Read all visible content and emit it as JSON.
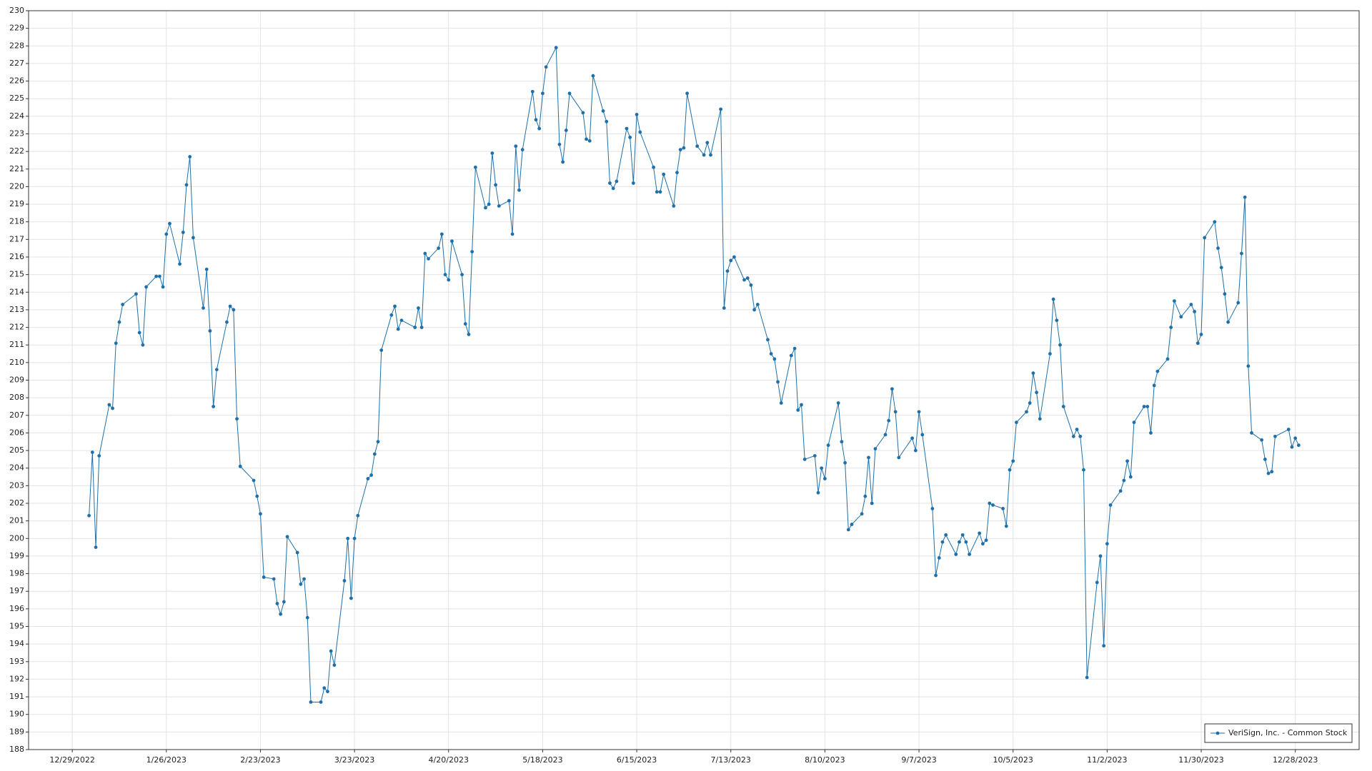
{
  "chart_data": {
    "type": "line",
    "grid": true,
    "legend": "lower right",
    "xlim": [
      "2022-12-16",
      "2024-01-16"
    ],
    "xticks": [
      {
        "value": "2022-12-29",
        "label": "12/29/2022"
      },
      {
        "value": "2023-01-26",
        "label": "1/26/2023"
      },
      {
        "value": "2023-02-23",
        "label": "2/23/2023"
      },
      {
        "value": "2023-03-23",
        "label": "3/23/2023"
      },
      {
        "value": "2023-04-20",
        "label": "4/20/2023"
      },
      {
        "value": "2023-05-18",
        "label": "5/18/2023"
      },
      {
        "value": "2023-06-15",
        "label": "6/15/2023"
      },
      {
        "value": "2023-07-13",
        "label": "7/13/2023"
      },
      {
        "value": "2023-08-10",
        "label": "8/10/2023"
      },
      {
        "value": "2023-09-07",
        "label": "9/7/2023"
      },
      {
        "value": "2023-10-05",
        "label": "10/5/2023"
      },
      {
        "value": "2023-11-02",
        "label": "11/2/2023"
      },
      {
        "value": "2023-11-30",
        "label": "11/30/2023"
      },
      {
        "value": "2023-12-28",
        "label": "12/28/2023"
      }
    ],
    "ylim": [
      188,
      230
    ],
    "yticks": [
      188,
      189,
      190,
      191,
      192,
      193,
      194,
      195,
      196,
      197,
      198,
      199,
      200,
      201,
      202,
      203,
      204,
      205,
      206,
      207,
      208,
      209,
      210,
      211,
      212,
      213,
      214,
      215,
      216,
      217,
      218,
      219,
      220,
      221,
      222,
      223,
      224,
      225,
      226,
      227,
      228,
      229,
      230
    ],
    "x": [
      "2023-01-03",
      "2023-01-04",
      "2023-01-05",
      "2023-01-06",
      "2023-01-09",
      "2023-01-10",
      "2023-01-11",
      "2023-01-12",
      "2023-01-13",
      "2023-01-17",
      "2023-01-18",
      "2023-01-19",
      "2023-01-20",
      "2023-01-23",
      "2023-01-24",
      "2023-01-25",
      "2023-01-26",
      "2023-01-27",
      "2023-01-30",
      "2023-01-31",
      "2023-02-01",
      "2023-02-02",
      "2023-02-03",
      "2023-02-06",
      "2023-02-07",
      "2023-02-08",
      "2023-02-09",
      "2023-02-10",
      "2023-02-13",
      "2023-02-14",
      "2023-02-15",
      "2023-02-16",
      "2023-02-17",
      "2023-02-21",
      "2023-02-22",
      "2023-02-23",
      "2023-02-24",
      "2023-02-27",
      "2023-02-28",
      "2023-03-01",
      "2023-03-02",
      "2023-03-03",
      "2023-03-06",
      "2023-03-07",
      "2023-03-08",
      "2023-03-09",
      "2023-03-10",
      "2023-03-13",
      "2023-03-14",
      "2023-03-15",
      "2023-03-16",
      "2023-03-17",
      "2023-03-20",
      "2023-03-21",
      "2023-03-22",
      "2023-03-23",
      "2023-03-24",
      "2023-03-27",
      "2023-03-28",
      "2023-03-29",
      "2023-03-30",
      "2023-03-31",
      "2023-04-03",
      "2023-04-04",
      "2023-04-05",
      "2023-04-06",
      "2023-04-10",
      "2023-04-11",
      "2023-04-12",
      "2023-04-13",
      "2023-04-14",
      "2023-04-17",
      "2023-04-18",
      "2023-04-19",
      "2023-04-20",
      "2023-04-21",
      "2023-04-24",
      "2023-04-25",
      "2023-04-26",
      "2023-04-27",
      "2023-04-28",
      "2023-05-01",
      "2023-05-02",
      "2023-05-03",
      "2023-05-04",
      "2023-05-05",
      "2023-05-08",
      "2023-05-09",
      "2023-05-10",
      "2023-05-11",
      "2023-05-12",
      "2023-05-15",
      "2023-05-16",
      "2023-05-17",
      "2023-05-18",
      "2023-05-19",
      "2023-05-22",
      "2023-05-23",
      "2023-05-24",
      "2023-05-25",
      "2023-05-26",
      "2023-05-30",
      "2023-05-31",
      "2023-06-01",
      "2023-06-02",
      "2023-06-05",
      "2023-06-06",
      "2023-06-07",
      "2023-06-08",
      "2023-06-09",
      "2023-06-12",
      "2023-06-13",
      "2023-06-14",
      "2023-06-15",
      "2023-06-16",
      "2023-06-20",
      "2023-06-21",
      "2023-06-22",
      "2023-06-23",
      "2023-06-26",
      "2023-06-27",
      "2023-06-28",
      "2023-06-29",
      "2023-06-30",
      "2023-07-03",
      "2023-07-05",
      "2023-07-06",
      "2023-07-07",
      "2023-07-10",
      "2023-07-11",
      "2023-07-12",
      "2023-07-13",
      "2023-07-14",
      "2023-07-17",
      "2023-07-18",
      "2023-07-19",
      "2023-07-20",
      "2023-07-21",
      "2023-07-24",
      "2023-07-25",
      "2023-07-26",
      "2023-07-27",
      "2023-07-28",
      "2023-07-31",
      "2023-08-01",
      "2023-08-02",
      "2023-08-03",
      "2023-08-04",
      "2023-08-07",
      "2023-08-08",
      "2023-08-09",
      "2023-08-10",
      "2023-08-11",
      "2023-08-14",
      "2023-08-15",
      "2023-08-16",
      "2023-08-17",
      "2023-08-18",
      "2023-08-21",
      "2023-08-22",
      "2023-08-23",
      "2023-08-24",
      "2023-08-25",
      "2023-08-28",
      "2023-08-29",
      "2023-08-30",
      "2023-08-31",
      "2023-09-01",
      "2023-09-05",
      "2023-09-06",
      "2023-09-07",
      "2023-09-08",
      "2023-09-11",
      "2023-09-12",
      "2023-09-13",
      "2023-09-14",
      "2023-09-15",
      "2023-09-18",
      "2023-09-19",
      "2023-09-20",
      "2023-09-21",
      "2023-09-22",
      "2023-09-25",
      "2023-09-26",
      "2023-09-27",
      "2023-09-28",
      "2023-09-29",
      "2023-10-02",
      "2023-10-03",
      "2023-10-04",
      "2023-10-05",
      "2023-10-06",
      "2023-10-09",
      "2023-10-10",
      "2023-10-11",
      "2023-10-12",
      "2023-10-13",
      "2023-10-16",
      "2023-10-17",
      "2023-10-18",
      "2023-10-19",
      "2023-10-20",
      "2023-10-23",
      "2023-10-24",
      "2023-10-25",
      "2023-10-26",
      "2023-10-27",
      "2023-10-30",
      "2023-10-31",
      "2023-11-01",
      "2023-11-02",
      "2023-11-03",
      "2023-11-06",
      "2023-11-07",
      "2023-11-08",
      "2023-11-09",
      "2023-11-10",
      "2023-11-13",
      "2023-11-14",
      "2023-11-15",
      "2023-11-16",
      "2023-11-17",
      "2023-11-20",
      "2023-11-21",
      "2023-11-22",
      "2023-11-24",
      "2023-11-27",
      "2023-11-28",
      "2023-11-29",
      "2023-11-30",
      "2023-12-01",
      "2023-12-04",
      "2023-12-05",
      "2023-12-06",
      "2023-12-07",
      "2023-12-08",
      "2023-12-11",
      "2023-12-12",
      "2023-12-13",
      "2023-12-14",
      "2023-12-15",
      "2023-12-18",
      "2023-12-19",
      "2023-12-20",
      "2023-12-21",
      "2023-12-22",
      "2023-12-26",
      "2023-12-27",
      "2023-12-28",
      "2023-12-29"
    ],
    "series": [
      {
        "name": "VeriSign, Inc. - Common Stock",
        "color": "#1f6fa8",
        "values": [
          201.3,
          204.9,
          199.5,
          204.7,
          207.6,
          207.4,
          211.1,
          212.3,
          213.3,
          213.9,
          211.7,
          211.0,
          214.3,
          214.9,
          214.9,
          214.3,
          217.3,
          217.9,
          215.6,
          217.4,
          220.1,
          221.7,
          217.1,
          213.1,
          215.3,
          211.8,
          207.5,
          209.6,
          212.3,
          213.2,
          213.0,
          206.8,
          204.1,
          203.3,
          202.4,
          201.4,
          197.8,
          197.7,
          196.3,
          195.7,
          196.4,
          200.1,
          199.2,
          197.4,
          197.7,
          195.5,
          190.7,
          190.7,
          191.5,
          191.3,
          193.6,
          192.8,
          197.6,
          200.0,
          196.6,
          200.0,
          201.3,
          203.4,
          203.6,
          204.8,
          205.5,
          210.7,
          212.7,
          213.2,
          211.9,
          212.4,
          212.0,
          213.1,
          212.0,
          216.2,
          215.9,
          216.5,
          217.3,
          215.0,
          214.7,
          216.9,
          215.0,
          212.2,
          211.6,
          216.3,
          221.1,
          218.8,
          219.0,
          221.9,
          220.1,
          218.9,
          219.2,
          217.3,
          222.3,
          219.8,
          222.1,
          225.4,
          223.8,
          223.3,
          225.3,
          226.8,
          227.9,
          222.4,
          221.4,
          223.2,
          225.3,
          224.2,
          222.7,
          222.6,
          226.3,
          224.3,
          223.7,
          220.2,
          219.9,
          220.3,
          223.3,
          222.8,
          220.2,
          224.1,
          223.1,
          221.1,
          219.7,
          219.7,
          220.7,
          218.9,
          220.8,
          222.1,
          222.2,
          225.3,
          222.3,
          221.8,
          222.5,
          221.8,
          224.4,
          213.1,
          215.2,
          215.8,
          216.0,
          214.7,
          214.8,
          214.4,
          213.0,
          213.3,
          211.3,
          210.5,
          210.2,
          208.9,
          207.7,
          210.4,
          210.8,
          207.3,
          207.6,
          204.5,
          204.7,
          202.6,
          204.0,
          203.4,
          205.3,
          207.7,
          205.5,
          204.3,
          200.5,
          200.8,
          201.4,
          202.4,
          204.6,
          202.0,
          205.1,
          205.9,
          206.7,
          208.5,
          207.2,
          204.6,
          205.7,
          205.0,
          207.2,
          205.9,
          201.7,
          197.9,
          198.9,
          199.8,
          200.2,
          199.1,
          199.8,
          200.2,
          199.8,
          199.1,
          200.3,
          199.7,
          199.9,
          202.0,
          201.9,
          201.7,
          200.7,
          203.9,
          204.4,
          206.6,
          207.2,
          207.7,
          209.4,
          208.3,
          206.8,
          210.5,
          213.6,
          212.4,
          211.0,
          207.5,
          205.8,
          206.2,
          205.8,
          203.9,
          192.1,
          197.5,
          199.0,
          193.9,
          199.7,
          201.9,
          202.7,
          203.3,
          204.4,
          203.5,
          206.6,
          207.5,
          207.5,
          206.0,
          208.7,
          209.5,
          210.2,
          212.0,
          213.5,
          212.6,
          213.3,
          212.9,
          211.1,
          211.6,
          217.1,
          218.0,
          216.5,
          215.4,
          213.9,
          212.3,
          213.4,
          216.2,
          219.4,
          209.8,
          206.0,
          205.6,
          204.5,
          203.7,
          203.8,
          205.8,
          206.2,
          205.2,
          205.7,
          205.3
        ]
      }
    ]
  }
}
